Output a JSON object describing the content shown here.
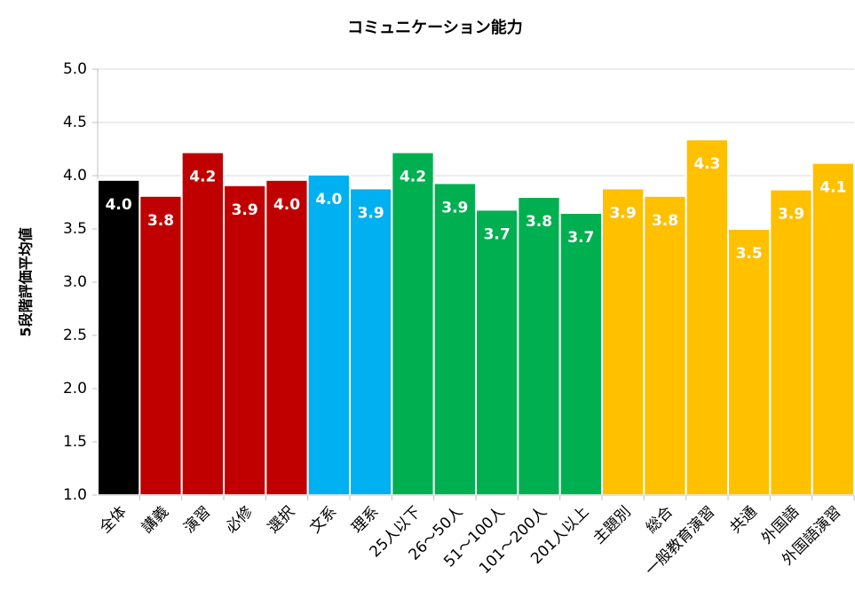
{
  "chart_data": {
    "type": "bar",
    "title": "コミュニケーション能力",
    "y_label": "5段階評価平均値",
    "categories": [
      "全体",
      "講義",
      "演習",
      "必修",
      "選択",
      "文系",
      "理系",
      "25人以下",
      "26～50人",
      "51～100人",
      "101～200人",
      "201人以上",
      "主題別",
      "総合",
      "一般教育演習",
      "共通",
      "外国語",
      "外国語演習"
    ],
    "values": [
      3.96,
      3.81,
      4.22,
      3.91,
      3.96,
      4.01,
      3.88,
      4.22,
      3.93,
      3.68,
      3.8,
      3.65,
      3.88,
      3.81,
      4.34,
      3.5,
      3.87,
      4.12
    ],
    "value_labels": [
      "4.0",
      "3.8",
      "4.2",
      "3.9",
      "4.0",
      "4.0",
      "3.9",
      "4.2",
      "3.9",
      "3.7",
      "3.8",
      "3.7",
      "3.9",
      "3.8",
      "4.3",
      "3.5",
      "3.9",
      "4.1"
    ],
    "colors": [
      "#000000",
      "#c00000",
      "#c00000",
      "#c00000",
      "#c00000",
      "#00b0f0",
      "#00b0f0",
      "#00b050",
      "#00b050",
      "#00b050",
      "#00b050",
      "#00b050",
      "#ffc000",
      "#ffc000",
      "#ffc000",
      "#ffc000",
      "#ffc000",
      "#ffc000"
    ],
    "ylim": [
      1,
      5
    ],
    "yticks": [
      {
        "value": 1,
        "label": "1.0"
      },
      {
        "value": 1.5,
        "label": "1.5"
      },
      {
        "value": 2,
        "label": "2.0"
      },
      {
        "value": 2.5,
        "label": "2.5"
      },
      {
        "value": 3,
        "label": "3.0"
      },
      {
        "value": 3.5,
        "label": "3.5"
      },
      {
        "value": 4,
        "label": "4.0"
      },
      {
        "value": 4.5,
        "label": "4.5"
      },
      {
        "value": 5,
        "label": "5.0"
      }
    ],
    "grid": true
  }
}
